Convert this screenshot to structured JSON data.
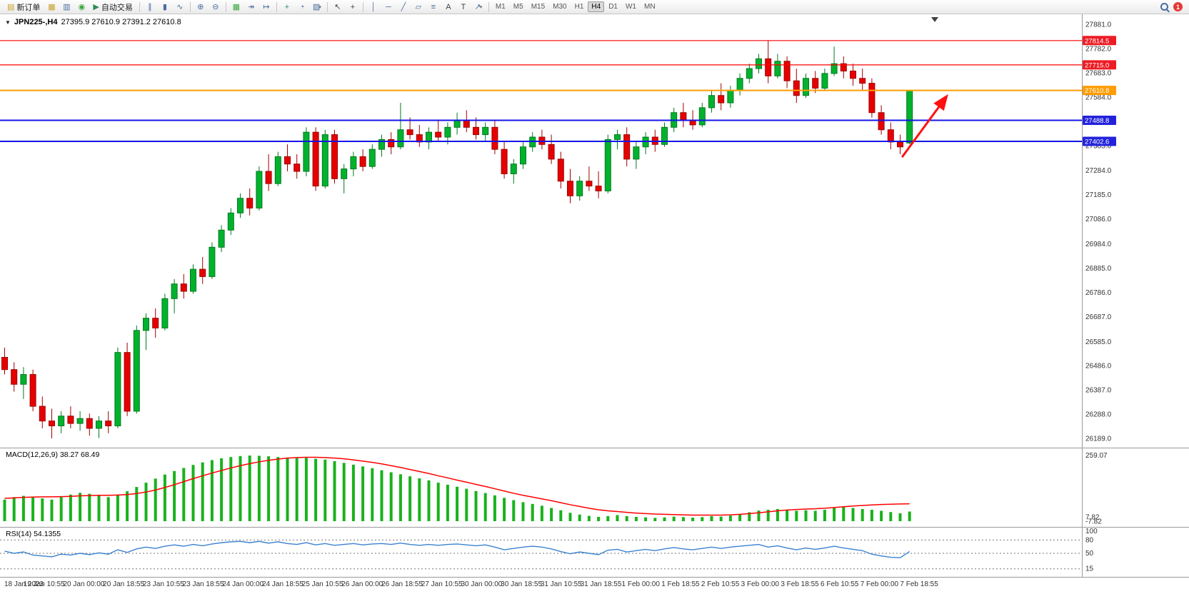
{
  "toolbar": {
    "new_order_label": "新订单",
    "auto_trading_label": "自动交易",
    "notification_count": "1",
    "timeframes": [
      "M1",
      "M5",
      "M15",
      "M30",
      "H1",
      "H4",
      "D1",
      "W1",
      "MN"
    ],
    "active_timeframe": "H4",
    "items": [
      {
        "type": "button",
        "name": "new-order-button",
        "glyph": "▤",
        "color": "#c8a02a",
        "label_key": "new_order_label"
      },
      {
        "type": "icon",
        "name": "new-chart-icon",
        "glyph": "▦",
        "color": "#c8a02a"
      },
      {
        "type": "icon",
        "name": "profiles-icon",
        "glyph": "▥",
        "color": "#4a6da0"
      },
      {
        "type": "icon",
        "name": "market-watch-icon",
        "glyph": "◉",
        "color": "#3aa63a"
      },
      {
        "type": "button",
        "name": "auto-trading-button",
        "glyph": "▶",
        "color": "#2e8b57",
        "label_key": "auto_trading_label"
      },
      {
        "type": "sep"
      },
      {
        "type": "icon",
        "name": "bar-chart-icon",
        "glyph": "∥",
        "color": "#4a6da0"
      },
      {
        "type": "icon",
        "name": "candlestick-chart-icon",
        "glyph": "▮",
        "color": "#4a6da0"
      },
      {
        "type": "icon",
        "name": "line-chart-icon",
        "glyph": "∿",
        "color": "#4a6da0"
      },
      {
        "type": "sep"
      },
      {
        "type": "icon",
        "name": "zoom-in-icon",
        "glyph": "⊕",
        "color": "#4a6da0"
      },
      {
        "type": "icon",
        "name": "zoom-out-icon",
        "glyph": "⊖",
        "color": "#4a6da0"
      },
      {
        "type": "sep"
      },
      {
        "type": "icon",
        "name": "tile-windows-icon",
        "glyph": "▦",
        "color": "#3aa63a"
      },
      {
        "type": "icon",
        "name": "auto-scroll-icon",
        "glyph": "↠",
        "color": "#4a6da0"
      },
      {
        "type": "icon",
        "name": "chart-shift-icon",
        "glyph": "↦",
        "color": "#4a6da0"
      },
      {
        "type": "sep"
      },
      {
        "type": "icon",
        "name": "add-indicator-icon",
        "glyph": "+",
        "color": "#2e8b57"
      },
      {
        "type": "icon",
        "name": "period-icon",
        "glyph": "◔",
        "color": "#4a6da0"
      },
      {
        "type": "icon",
        "name": "template-icon",
        "glyph": "▨",
        "color": "#4a6da0",
        "caret": true
      },
      {
        "type": "sep"
      },
      {
        "type": "icon",
        "name": "cursor-icon",
        "glyph": "↖",
        "color": "#444444"
      },
      {
        "type": "icon",
        "name": "crosshair-icon",
        "glyph": "+",
        "color": "#444444"
      },
      {
        "type": "sep"
      },
      {
        "type": "icon",
        "name": "vertical-line-icon",
        "glyph": "│",
        "color": "#4a6da0"
      },
      {
        "type": "icon",
        "name": "horizontal-line-icon",
        "glyph": "─",
        "color": "#4a6da0"
      },
      {
        "type": "icon",
        "name": "trendline-icon",
        "glyph": "╱",
        "color": "#4a6da0"
      },
      {
        "type": "icon",
        "name": "channel-icon",
        "glyph": "▱",
        "color": "#4a6da0"
      },
      {
        "type": "icon",
        "name": "fibonacci-icon",
        "glyph": "≡",
        "color": "#4a6da0"
      },
      {
        "type": "icon",
        "name": "text-icon",
        "glyph": "A",
        "color": "#444444"
      },
      {
        "type": "icon",
        "name": "label-icon",
        "glyph": "T",
        "color": "#444444"
      },
      {
        "type": "icon",
        "name": "arrows-icon",
        "glyph": "↗",
        "color": "#4a6da0",
        "caret": true
      },
      {
        "type": "sep"
      }
    ]
  },
  "chart": {
    "collapse_icon": "▼",
    "symbol_period": "JPN225-,H4",
    "ohlc_text": "27395.9 27610.9 27391.2 27610.8"
  },
  "chart_data": {
    "type": "candlestick",
    "symbol": "JPN225-",
    "period": "H4",
    "ohlc_current": {
      "open": 27395.9,
      "high": 27610.9,
      "low": 27391.2,
      "close": 27610.8
    },
    "y_axis_labels": [
      "27881.0",
      "27782.0",
      "27683.0",
      "27584.0",
      "27385.0",
      "27284.0",
      "27185.0",
      "27086.0",
      "26984.0",
      "26885.0",
      "26786.0",
      "26687.0",
      "26585.0",
      "26486.0",
      "26387.0",
      "26288.0",
      "26189.0"
    ],
    "x_labels": [
      "18 Jan 2023",
      "19 Jan 10:55",
      "20 Jan 00:00",
      "20 Jan 18:55",
      "23 Jan 10:55",
      "23 Jan 18:55",
      "24 Jan 00:00",
      "24 Jan 18:55",
      "25 Jan 10:55",
      "26 Jan 00:00",
      "26 Jan 18:55",
      "27 Jan 10:55",
      "30 Jan 00:00",
      "30 Jan 18:55",
      "31 Jan 10:55",
      "31 Jan 18:55",
      "1 Feb 00:00",
      "1 Feb 18:55",
      "2 Feb 10:55",
      "3 Feb 00:00",
      "3 Feb 18:55",
      "6 Feb 10:55",
      "7 Feb 00:00",
      "7 Feb 18:55"
    ],
    "candles": [
      [
        26520,
        26560,
        26450,
        26470
      ],
      [
        26470,
        26500,
        26380,
        26410
      ],
      [
        26410,
        26480,
        26350,
        26450
      ],
      [
        26450,
        26470,
        26300,
        26320
      ],
      [
        26320,
        26360,
        26230,
        26260
      ],
      [
        26260,
        26310,
        26189,
        26240
      ],
      [
        26240,
        26300,
        26210,
        26280
      ],
      [
        26280,
        26320,
        26230,
        26250
      ],
      [
        26250,
        26300,
        26220,
        26270
      ],
      [
        26270,
        26290,
        26200,
        26230
      ],
      [
        26230,
        26280,
        26190,
        26260
      ],
      [
        26260,
        26300,
        26210,
        26240
      ],
      [
        26240,
        26560,
        26230,
        26540
      ],
      [
        26540,
        26580,
        26280,
        26300
      ],
      [
        26300,
        26650,
        26290,
        26630
      ],
      [
        26630,
        26700,
        26550,
        26680
      ],
      [
        26680,
        26720,
        26600,
        26640
      ],
      [
        26640,
        26780,
        26630,
        26760
      ],
      [
        26760,
        26840,
        26700,
        26820
      ],
      [
        26820,
        26860,
        26760,
        26790
      ],
      [
        26790,
        26900,
        26780,
        26880
      ],
      [
        26880,
        26930,
        26820,
        26850
      ],
      [
        26850,
        26990,
        26840,
        26970
      ],
      [
        26970,
        27060,
        26950,
        27040
      ],
      [
        27040,
        27130,
        27020,
        27110
      ],
      [
        27110,
        27190,
        27090,
        27170
      ],
      [
        27170,
        27210,
        27100,
        27130
      ],
      [
        27130,
        27300,
        27120,
        27280
      ],
      [
        27280,
        27350,
        27200,
        27230
      ],
      [
        27230,
        27360,
        27220,
        27340
      ],
      [
        27340,
        27390,
        27280,
        27310
      ],
      [
        27310,
        27350,
        27250,
        27280
      ],
      [
        27280,
        27460,
        27260,
        27440
      ],
      [
        27440,
        27460,
        27200,
        27220
      ],
      [
        27220,
        27450,
        27210,
        27430
      ],
      [
        27430,
        27450,
        27230,
        27250
      ],
      [
        27250,
        27310,
        27190,
        27290
      ],
      [
        27290,
        27360,
        27260,
        27340
      ],
      [
        27340,
        27370,
        27280,
        27300
      ],
      [
        27300,
        27390,
        27290,
        27370
      ],
      [
        27370,
        27430,
        27340,
        27410
      ],
      [
        27410,
        27440,
        27350,
        27380
      ],
      [
        27380,
        27560,
        27370,
        27450
      ],
      [
        27450,
        27500,
        27410,
        27430
      ],
      [
        27430,
        27470,
        27380,
        27400
      ],
      [
        27400,
        27460,
        27370,
        27440
      ],
      [
        27440,
        27490,
        27400,
        27420
      ],
      [
        27420,
        27480,
        27390,
        27460
      ],
      [
        27460,
        27520,
        27430,
        27490
      ],
      [
        27490,
        27530,
        27440,
        27460
      ],
      [
        27460,
        27500,
        27410,
        27430
      ],
      [
        27430,
        27480,
        27400,
        27460
      ],
      [
        27460,
        27490,
        27350,
        27370
      ],
      [
        27370,
        27400,
        27250,
        27270
      ],
      [
        27270,
        27330,
        27230,
        27310
      ],
      [
        27310,
        27400,
        27290,
        27380
      ],
      [
        27380,
        27440,
        27360,
        27420
      ],
      [
        27420,
        27450,
        27370,
        27390
      ],
      [
        27390,
        27430,
        27310,
        27330
      ],
      [
        27330,
        27360,
        27210,
        27240
      ],
      [
        27240,
        27290,
        27150,
        27180
      ],
      [
        27180,
        27260,
        27160,
        27240
      ],
      [
        27240,
        27300,
        27200,
        27220
      ],
      [
        27220,
        27280,
        27170,
        27200
      ],
      [
        27200,
        27430,
        27190,
        27410
      ],
      [
        27410,
        27450,
        27370,
        27430
      ],
      [
        27430,
        27460,
        27300,
        27330
      ],
      [
        27330,
        27400,
        27290,
        27380
      ],
      [
        27380,
        27440,
        27350,
        27420
      ],
      [
        27420,
        27450,
        27360,
        27390
      ],
      [
        27390,
        27480,
        27380,
        27460
      ],
      [
        27460,
        27540,
        27440,
        27520
      ],
      [
        27520,
        27560,
        27460,
        27490
      ],
      [
        27490,
        27530,
        27450,
        27470
      ],
      [
        27470,
        27560,
        27460,
        27540
      ],
      [
        27540,
        27610,
        27520,
        27590
      ],
      [
        27590,
        27640,
        27530,
        27560
      ],
      [
        27560,
        27630,
        27540,
        27610
      ],
      [
        27610,
        27680,
        27590,
        27660
      ],
      [
        27660,
        27720,
        27640,
        27700
      ],
      [
        27700,
        27760,
        27680,
        27740
      ],
      [
        27740,
        27814.5,
        27640,
        27670
      ],
      [
        27670,
        27760,
        27660,
        27730
      ],
      [
        27730,
        27750,
        27620,
        27650
      ],
      [
        27650,
        27700,
        27560,
        27590
      ],
      [
        27590,
        27680,
        27580,
        27660
      ],
      [
        27660,
        27690,
        27600,
        27620
      ],
      [
        27620,
        27700,
        27610,
        27680
      ],
      [
        27680,
        27790,
        27670,
        27720
      ],
      [
        27720,
        27750,
        27660,
        27690
      ],
      [
        27690,
        27720,
        27630,
        27660
      ],
      [
        27660,
        27700,
        27610,
        27640
      ],
      [
        27640,
        27660,
        27500,
        27520
      ],
      [
        27520,
        27550,
        27430,
        27450
      ],
      [
        27450,
        27480,
        27370,
        27400
      ],
      [
        27400,
        27430,
        27350,
        27380
      ],
      [
        27395.9,
        27610.9,
        27391.2,
        27610.8
      ]
    ],
    "bull_color": "#00b22d",
    "bear_color": "#e60000",
    "h_lines": [
      {
        "price": 27814.5,
        "color": "#ff0000",
        "width": 1.2
      },
      {
        "price": 27715.0,
        "color": "#ff0000",
        "width": 1.2
      },
      {
        "price": 27610.8,
        "color": "#ff9c00",
        "width": 2
      },
      {
        "price": 27488.8,
        "color": "#1414e6",
        "width": 2
      },
      {
        "price": 27402.6,
        "color": "#1414e6",
        "width": 2
      }
    ],
    "price_tags": [
      {
        "text": "27814.5",
        "bg": "#ed1c24"
      },
      {
        "text": "27715.0",
        "bg": "#ed1c24"
      },
      {
        "text": "27610.8",
        "bg": "#ff9c00"
      },
      {
        "text": "27488.8",
        "bg": "#2222dd"
      },
      {
        "text": "27402.6",
        "bg": "#2222dd"
      }
    ],
    "macd": {
      "label": "MACD(12,26,9) 38.27 68.49",
      "hist_color": "#19b21c",
      "signal_color": "#ff0000",
      "axis_labels": [
        {
          "text": "259.07",
          "v": 259.07
        },
        {
          "text": "7.82",
          "v": 16
        },
        {
          "text": "-7.82",
          "v": -2
        }
      ],
      "histogram": [
        85,
        95,
        100,
        95,
        90,
        85,
        95,
        105,
        112,
        108,
        100,
        95,
        105,
        118,
        135,
        152,
        168,
        184,
        198,
        210,
        222,
        232,
        241,
        248,
        253,
        257,
        259,
        258,
        256,
        253,
        251,
        249,
        250,
        246,
        243,
        237,
        230,
        223,
        216,
        209,
        201,
        193,
        185,
        177,
        169,
        161,
        152,
        144,
        136,
        128,
        119,
        111,
        102,
        92,
        83,
        75,
        68,
        61,
        52,
        43,
        33,
        26,
        21,
        17,
        20,
        24,
        20,
        17,
        15,
        13,
        15,
        18,
        16,
        14,
        16,
        20,
        18,
        22,
        28,
        35,
        42,
        45,
        48,
        45,
        41,
        43,
        41,
        45,
        52,
        55,
        52,
        48,
        45,
        41,
        36,
        31,
        38
      ],
      "signal": [
        90,
        92,
        94,
        95,
        96,
        96,
        97,
        98,
        100,
        101,
        102,
        102,
        103,
        105,
        109,
        115,
        123,
        133,
        144,
        156,
        168,
        179,
        190,
        200,
        210,
        219,
        227,
        234,
        240,
        245,
        249,
        251,
        252,
        252,
        251,
        249,
        246,
        242,
        237,
        232,
        226,
        219,
        212,
        204,
        196,
        188,
        179,
        171,
        162,
        154,
        145,
        137,
        128,
        119,
        110,
        102,
        95,
        88,
        81,
        73,
        65,
        58,
        51,
        45,
        41,
        38,
        35,
        32,
        30,
        28,
        27,
        26,
        25,
        24,
        24,
        24,
        24,
        25,
        27,
        30,
        33,
        37,
        41,
        44,
        46,
        48,
        49,
        51,
        54,
        57,
        60,
        62,
        64,
        66,
        67,
        68,
        68.5
      ]
    },
    "rsi": {
      "label": "RSI(14) 54.1355",
      "color": "#3b82d0",
      "levels": [
        80,
        50,
        15
      ],
      "axis_labels": [
        {
          "text": "100",
          "v": 100
        },
        {
          "text": "80",
          "v": 80
        },
        {
          "text": "50",
          "v": 50
        },
        {
          "text": "15",
          "v": 15
        }
      ],
      "values": [
        55,
        50,
        53,
        46,
        44,
        42,
        48,
        46,
        50,
        47,
        51,
        48,
        58,
        52,
        60,
        64,
        61,
        66,
        69,
        66,
        70,
        67,
        71,
        74,
        76,
        77,
        74,
        77,
        73,
        76,
        72,
        70,
        74,
        69,
        72,
        68,
        70,
        72,
        69,
        71,
        72,
        70,
        73,
        70,
        68,
        70,
        68,
        70,
        71,
        69,
        67,
        69,
        64,
        58,
        61,
        64,
        66,
        64,
        60,
        54,
        49,
        53,
        50,
        47,
        57,
        59,
        53,
        56,
        59,
        56,
        60,
        63,
        60,
        58,
        61,
        64,
        61,
        64,
        66,
        68,
        70,
        64,
        67,
        62,
        58,
        62,
        59,
        62,
        66,
        62,
        59,
        56,
        48,
        44,
        41,
        40,
        54
      ]
    },
    "arrow": {
      "from_idx": 95.2,
      "from_price": 27338,
      "to_idx": 99.9,
      "to_price": 27585,
      "color": "#ff1010"
    }
  }
}
